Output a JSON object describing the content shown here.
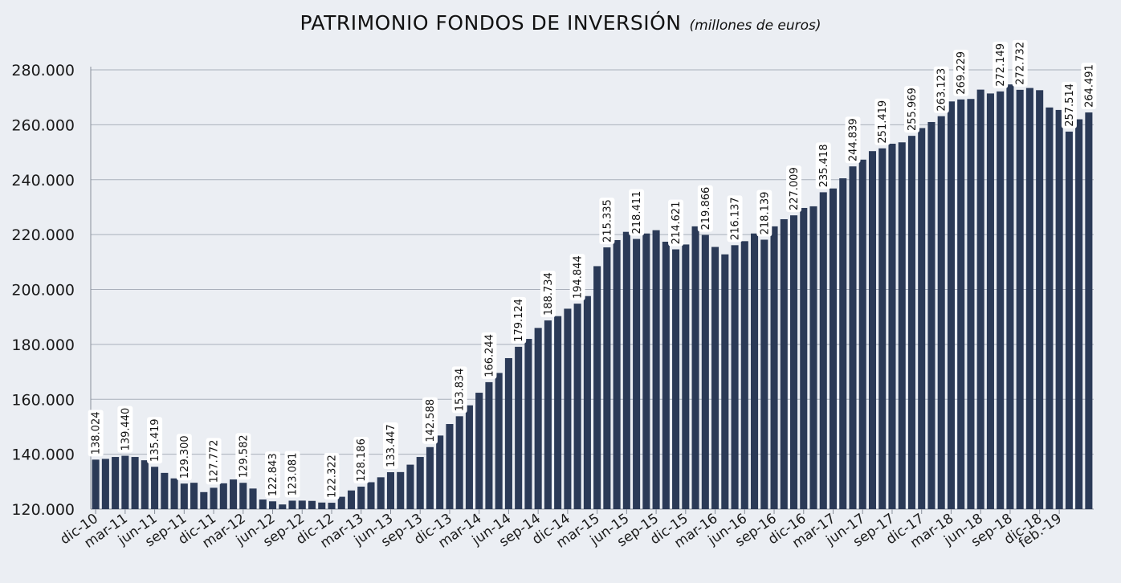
{
  "title": "PATRIMONIO FONDOS DE INVERSIÓN",
  "subtitle": "(millones de euros)",
  "colors": {
    "bar": "#2b3a57",
    "grid": "#aab0bb",
    "background": "#ebeef3"
  },
  "chart_data": {
    "type": "bar",
    "title": "PATRIMONIO FONDOS DE INVERSIÓN",
    "subtitle": "(millones de euros)",
    "xlabel": "",
    "ylabel": "",
    "ylim": [
      120000,
      280000
    ],
    "yticks": [
      120000,
      140000,
      160000,
      180000,
      200000,
      220000,
      240000,
      260000,
      280000
    ],
    "ytick_labels": [
      "120.000",
      "140.000",
      "160.000",
      "180.000",
      "200.000",
      "220.000",
      "240.000",
      "260.000",
      "280.000"
    ],
    "grid": true,
    "legend": "none",
    "xtick_labels": [
      {
        "index": 0,
        "text": "dic-10"
      },
      {
        "index": 3,
        "text": "mar-11"
      },
      {
        "index": 6,
        "text": "jun-11"
      },
      {
        "index": 9,
        "text": "sep-11"
      },
      {
        "index": 12,
        "text": "dic-11"
      },
      {
        "index": 15,
        "text": "mar-12"
      },
      {
        "index": 18,
        "text": "jun-12"
      },
      {
        "index": 21,
        "text": "sep-12"
      },
      {
        "index": 24,
        "text": "dic-12"
      },
      {
        "index": 27,
        "text": "mar-13"
      },
      {
        "index": 30,
        "text": "jun-13"
      },
      {
        "index": 33,
        "text": "sep-13"
      },
      {
        "index": 36,
        "text": "dic-13"
      },
      {
        "index": 39,
        "text": "mar-14"
      },
      {
        "index": 42,
        "text": "jun-14"
      },
      {
        "index": 45,
        "text": "sep-14"
      },
      {
        "index": 48,
        "text": "dic-14"
      },
      {
        "index": 51,
        "text": "mar-15"
      },
      {
        "index": 54,
        "text": "jun-15"
      },
      {
        "index": 57,
        "text": "sep-15"
      },
      {
        "index": 60,
        "text": "dic-15"
      },
      {
        "index": 63,
        "text": "mar-16"
      },
      {
        "index": 66,
        "text": "jun-16"
      },
      {
        "index": 69,
        "text": "sep-16"
      },
      {
        "index": 72,
        "text": "dic-16"
      },
      {
        "index": 75,
        "text": "mar-17"
      },
      {
        "index": 78,
        "text": "jun-17"
      },
      {
        "index": 81,
        "text": "sep-17"
      },
      {
        "index": 84,
        "text": "dic-17"
      },
      {
        "index": 87,
        "text": "mar-18"
      },
      {
        "index": 90,
        "text": "jun-18"
      },
      {
        "index": 93,
        "text": "sep-18"
      },
      {
        "index": 96,
        "text": "dic-18"
      },
      {
        "index": 98,
        "text": "feb.-19"
      }
    ],
    "values": [
      138024,
      138300,
      139000,
      139440,
      139000,
      137800,
      135419,
      133200,
      131200,
      129300,
      129600,
      126200,
      127772,
      129400,
      130800,
      129582,
      127500,
      123500,
      122843,
      121700,
      123081,
      123100,
      123000,
      122400,
      122322,
      124500,
      126800,
      128186,
      129800,
      131600,
      133447,
      133500,
      136200,
      139000,
      142588,
      146800,
      151000,
      153834,
      157800,
      162400,
      166244,
      169600,
      175000,
      179124,
      182000,
      186000,
      188734,
      190300,
      193000,
      194844,
      197600,
      208500,
      215335,
      218000,
      221000,
      218411,
      220400,
      221600,
      217400,
      214621,
      216400,
      223000,
      219866,
      215500,
      212800,
      216137,
      217600,
      220400,
      218139,
      223000,
      225600,
      227009,
      229700,
      230300,
      235418,
      236800,
      240500,
      244839,
      247300,
      250400,
      251419,
      253100,
      253600,
      255969,
      258800,
      261000,
      263123,
      268500,
      269229,
      269400,
      272800,
      271400,
      272149,
      274700,
      272732,
      273400,
      272600,
      266300,
      265400,
      257514,
      262000,
      264491
    ],
    "data_labels": [
      {
        "index": 0,
        "text": "138.024"
      },
      {
        "index": 3,
        "text": "139.440"
      },
      {
        "index": 6,
        "text": "135.419"
      },
      {
        "index": 9,
        "text": "129.300"
      },
      {
        "index": 12,
        "text": "127.772"
      },
      {
        "index": 15,
        "text": "129.582"
      },
      {
        "index": 18,
        "text": "122.843"
      },
      {
        "index": 20,
        "text": "123.081"
      },
      {
        "index": 24,
        "text": "122.322"
      },
      {
        "index": 27,
        "text": "128.186"
      },
      {
        "index": 30,
        "text": "133.447"
      },
      {
        "index": 34,
        "text": "142.588"
      },
      {
        "index": 37,
        "text": "153.834"
      },
      {
        "index": 40,
        "text": "166.244"
      },
      {
        "index": 43,
        "text": "179.124"
      },
      {
        "index": 46,
        "text": "188.734"
      },
      {
        "index": 49,
        "text": "194.844"
      },
      {
        "index": 52,
        "text": "215.335"
      },
      {
        "index": 55,
        "text": "218.411"
      },
      {
        "index": 59,
        "text": "214.621"
      },
      {
        "index": 62,
        "text": "219.866"
      },
      {
        "index": 65,
        "text": "216.137"
      },
      {
        "index": 68,
        "text": "218.139"
      },
      {
        "index": 71,
        "text": "227.009"
      },
      {
        "index": 74,
        "text": "235.418"
      },
      {
        "index": 77,
        "text": "244.839"
      },
      {
        "index": 80,
        "text": "251.419"
      },
      {
        "index": 83,
        "text": "255.969"
      },
      {
        "index": 86,
        "text": "263.123"
      },
      {
        "index": 88,
        "text": "269.229"
      },
      {
        "index": 92,
        "text": "272.149"
      },
      {
        "index": 94,
        "text": "272.732"
      },
      {
        "index": 99,
        "text": "257.514"
      },
      {
        "index": 101,
        "text": "264.491"
      }
    ]
  }
}
